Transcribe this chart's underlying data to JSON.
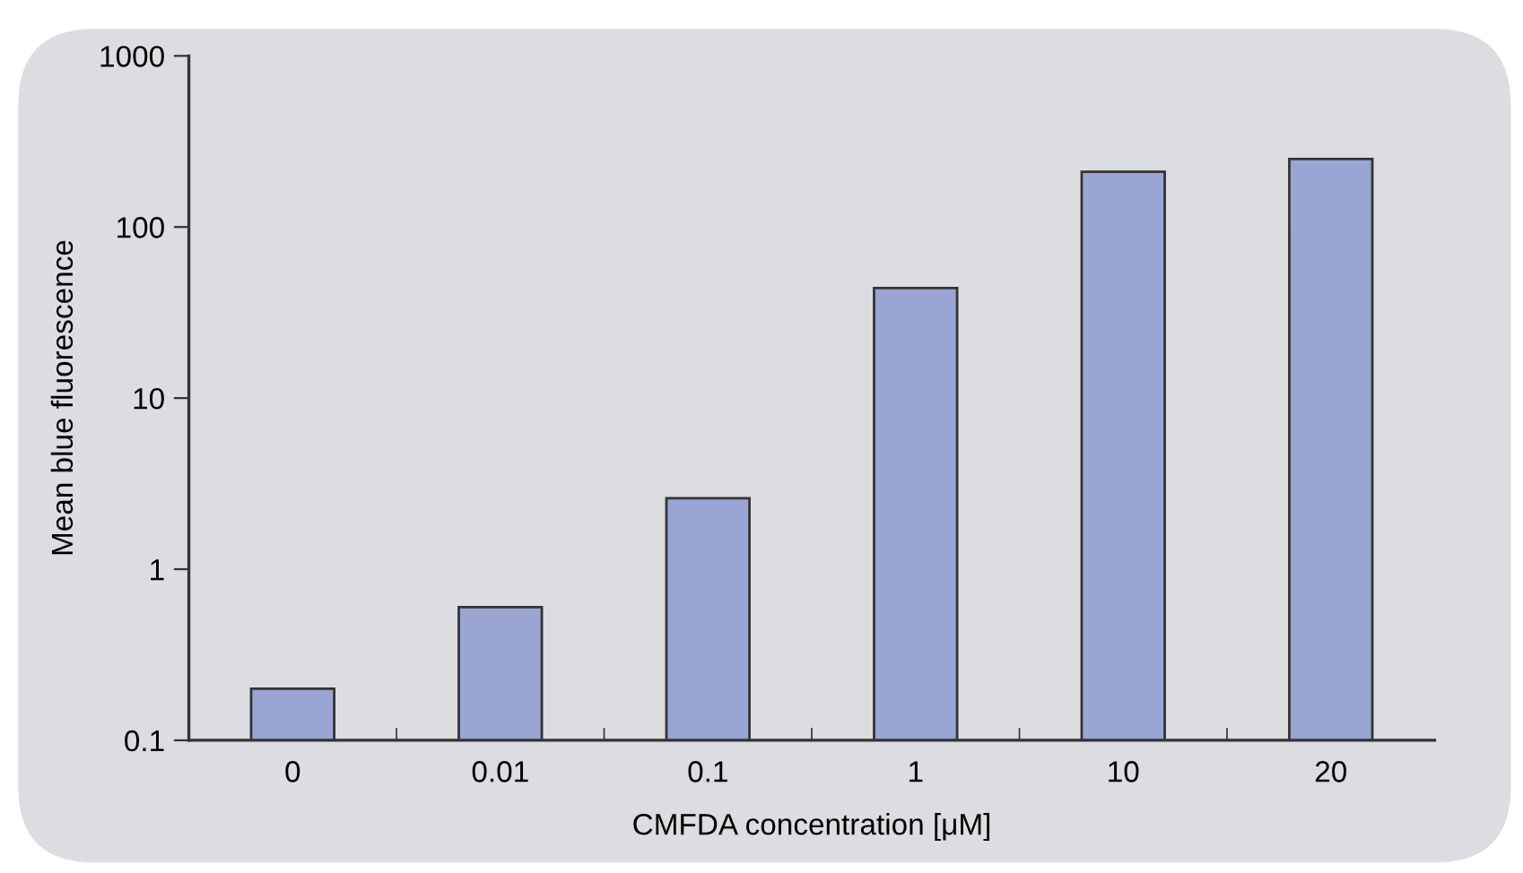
{
  "chart_data": {
    "type": "bar",
    "xlabel": "CMFDA concentration [μM]",
    "ylabel": "Mean blue fluorescence",
    "categories": [
      "0",
      "0.01",
      "0.1",
      "1",
      "10",
      "20"
    ],
    "values": [
      0.2,
      0.6,
      2.6,
      44,
      210,
      250
    ],
    "color": "#9aa5d3",
    "log": "y",
    "ylim": [
      0.1,
      1000
    ],
    "yticks": [
      0.1,
      1,
      10,
      100,
      1000
    ],
    "grid": false,
    "legend": false
  }
}
